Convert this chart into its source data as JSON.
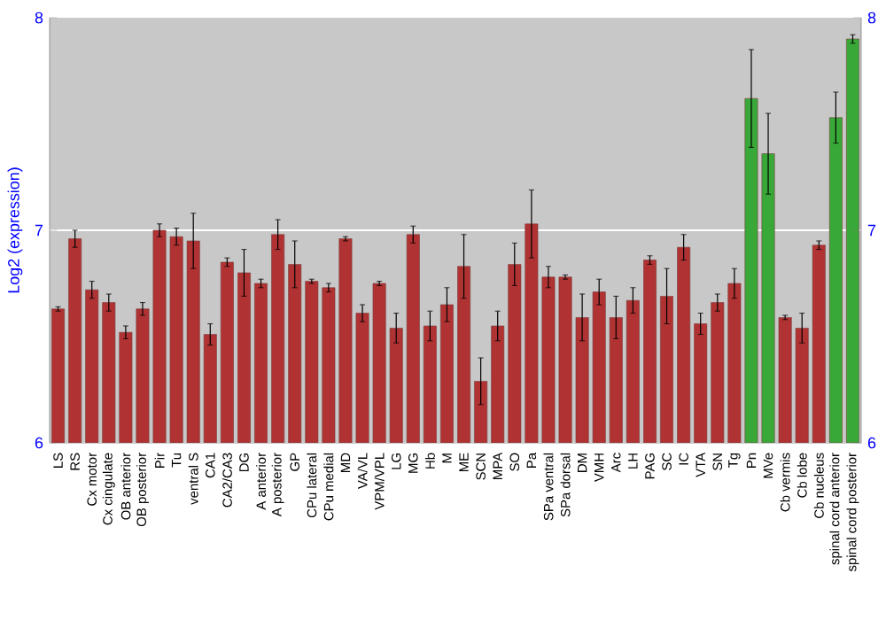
{
  "chart_data": {
    "type": "bar",
    "ylabel": "Log2 (expression)",
    "categories": [
      "LS",
      "RS",
      "Cx motor",
      "Cx cingulate",
      "OB anterior",
      "OB posterior",
      "Pir",
      "Tu",
      "ventral S",
      "CA1",
      "CA2/CA3",
      "DG",
      "A anterior",
      "A posterior",
      "GP",
      "CPu lateral",
      "CPu medial",
      "MD",
      "VA/VL",
      "VPM/VPL",
      "LG",
      "MG",
      "Hb",
      "M",
      "ME",
      "SCN",
      "MPA",
      "SO",
      "Pa",
      "SPa ventral",
      "SPa dorsal",
      "DM",
      "VMH",
      "Arc",
      "LH",
      "PAG",
      "SC",
      "IC",
      "VTA",
      "SN",
      "Tg",
      "Pn",
      "MVe",
      "Cb vermis",
      "Cb lobe",
      "Cb nucleus",
      "spinal cord anterior",
      "spinal cord posterior"
    ],
    "values": [
      6.63,
      6.96,
      6.72,
      6.66,
      6.52,
      6.63,
      7.0,
      6.97,
      6.95,
      6.51,
      6.85,
      6.8,
      6.75,
      6.98,
      6.84,
      6.76,
      6.73,
      6.96,
      6.61,
      6.75,
      6.54,
      6.98,
      6.55,
      6.65,
      6.83,
      6.29,
      6.55,
      6.84,
      7.03,
      6.78,
      6.78,
      6.59,
      6.71,
      6.59,
      6.67,
      6.86,
      6.69,
      6.92,
      6.56,
      6.66,
      6.75,
      7.62,
      7.36,
      6.59,
      6.54,
      6.93,
      7.53,
      7.9
    ],
    "errors": [
      0.01,
      0.04,
      0.04,
      0.04,
      0.03,
      0.03,
      0.03,
      0.04,
      0.13,
      0.05,
      0.02,
      0.11,
      0.02,
      0.07,
      0.11,
      0.01,
      0.02,
      0.01,
      0.04,
      0.01,
      0.07,
      0.04,
      0.07,
      0.08,
      0.15,
      0.11,
      0.07,
      0.1,
      0.16,
      0.05,
      0.01,
      0.11,
      0.06,
      0.1,
      0.06,
      0.02,
      0.13,
      0.06,
      0.05,
      0.04,
      0.07,
      0.23,
      0.19,
      0.01,
      0.07,
      0.02,
      0.12,
      0.02
    ],
    "colors": [
      "#b03232",
      "#b03232",
      "#b03232",
      "#b03232",
      "#b03232",
      "#b03232",
      "#b03232",
      "#b03232",
      "#b03232",
      "#b03232",
      "#b03232",
      "#b03232",
      "#b03232",
      "#b03232",
      "#b03232",
      "#b03232",
      "#b03232",
      "#b03232",
      "#b03232",
      "#b03232",
      "#b03232",
      "#b03232",
      "#b03232",
      "#b03232",
      "#b03232",
      "#b03232",
      "#b03232",
      "#b03232",
      "#b03232",
      "#b03232",
      "#b03232",
      "#b03232",
      "#b03232",
      "#b03232",
      "#b03232",
      "#b03232",
      "#b03232",
      "#b03232",
      "#b03232",
      "#b03232",
      "#b03232",
      "#38a838",
      "#38a838",
      "#b03232",
      "#b03232",
      "#b03232",
      "#38a838",
      "#38a838"
    ],
    "ylim": [
      6,
      8
    ],
    "yticks": [
      6,
      7,
      8
    ],
    "y2lim": [
      6,
      8
    ],
    "y2ticks": [
      6,
      7,
      8
    ],
    "grid": "y"
  }
}
